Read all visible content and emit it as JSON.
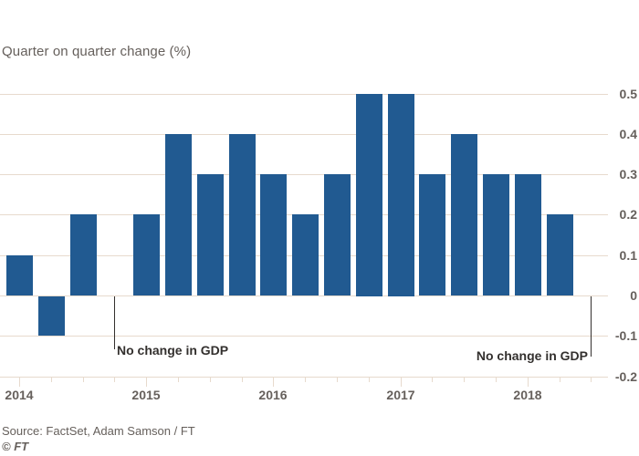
{
  "chart_data": {
    "type": "bar",
    "title": "Quarter on quarter change (%)",
    "categories": [
      "2014 Q1",
      "2014 Q2",
      "2014 Q3",
      "2014 Q4",
      "2015 Q1",
      "2015 Q2",
      "2015 Q3",
      "2015 Q4",
      "2016 Q1",
      "2016 Q2",
      "2016 Q3",
      "2016 Q4",
      "2017 Q1",
      "2017 Q2",
      "2017 Q3",
      "2017 Q4",
      "2018 Q1",
      "2018 Q2",
      "2018 Q3"
    ],
    "values": [
      0.1,
      -0.1,
      0.2,
      0,
      0.2,
      0.4,
      0.3,
      0.4,
      0.3,
      0.2,
      0.3,
      0.5,
      0.5,
      0.3,
      0.4,
      0.3,
      0.3,
      0.2,
      0
    ],
    "ylim": [
      -0.2,
      0.5
    ],
    "yticks": [
      {
        "value": 0.5,
        "label": "0.5"
      },
      {
        "value": 0.4,
        "label": "0.4"
      },
      {
        "value": 0.3,
        "label": "0.3"
      },
      {
        "value": 0.2,
        "label": "0.2"
      },
      {
        "value": 0.1,
        "label": "0.1"
      },
      {
        "value": 0,
        "label": "0"
      },
      {
        "value": -0.1,
        "label": "-0.1"
      },
      {
        "value": -0.2,
        "label": "-0.2"
      }
    ],
    "year_labels": [
      {
        "label": "2014",
        "quarter_index": 0
      },
      {
        "label": "2015",
        "quarter_index": 4
      },
      {
        "label": "2016",
        "quarter_index": 8
      },
      {
        "label": "2017",
        "quarter_index": 12
      },
      {
        "label": "2018",
        "quarter_index": 16
      }
    ],
    "annotations": [
      {
        "text": "No change in GDP",
        "quarter_index": 3,
        "align": "left"
      },
      {
        "text": "No change in GDP",
        "quarter_index": 18,
        "align": "right"
      }
    ],
    "grid": "horizontal",
    "legend_position": "none",
    "bar_color": "#215a91",
    "gridline_color": "#e7dacd",
    "axis_text_color": "#66605c",
    "annotation_color": "#33302e"
  },
  "footer": {
    "source": "Source: FactSet, Adam Samson / FT",
    "copyright": "© FT"
  }
}
